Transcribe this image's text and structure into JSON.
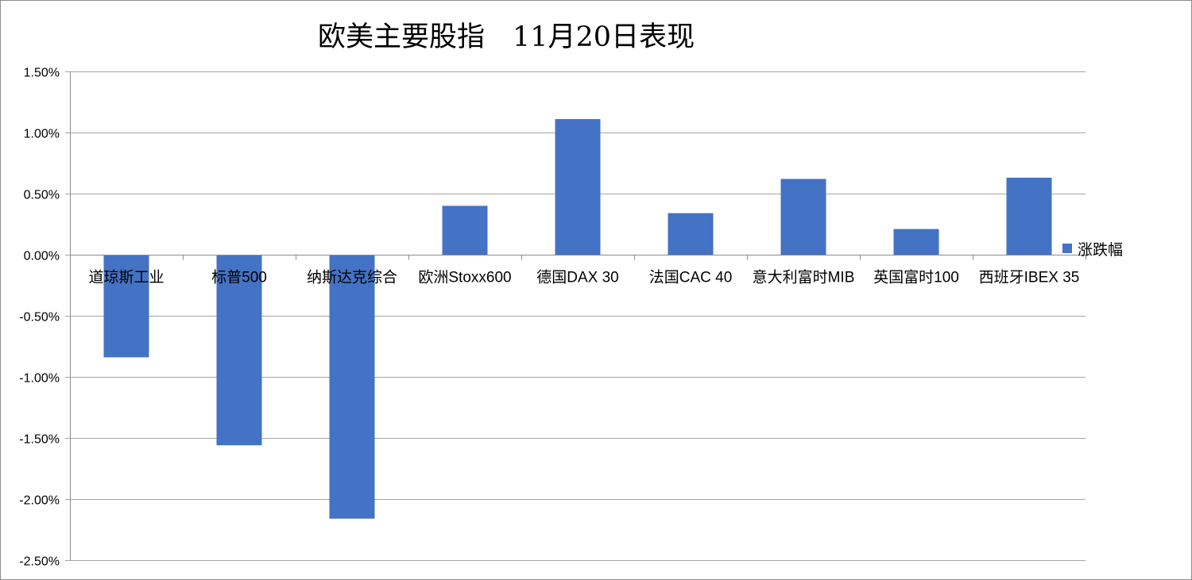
{
  "chart_data": {
    "type": "bar",
    "title": "欧美主要股指　11月20日表现",
    "categories": [
      "道琼斯工业",
      "标普500",
      "纳斯达克综合",
      "欧洲Stoxx600",
      "德国DAX 30",
      "法国CAC 40",
      "意大利富时MIB",
      "英国富时100",
      "西班牙IBEX 35"
    ],
    "series": [
      {
        "name": "涨跌幅",
        "values": [
          -0.84,
          -1.56,
          -2.16,
          0.4,
          1.11,
          0.34,
          0.62,
          0.21,
          0.63
        ],
        "color": "#4472C4"
      }
    ],
    "ylim": [
      -2.5,
      1.5
    ],
    "yticks": [
      {
        "value": 1.5,
        "label": "1.50%"
      },
      {
        "value": 1.0,
        "label": "1.00%"
      },
      {
        "value": 0.5,
        "label": "0.50%"
      },
      {
        "value": 0.0,
        "label": "0.00%"
      },
      {
        "value": -0.5,
        "label": "-0.50%"
      },
      {
        "value": -1.0,
        "label": "-1.00%"
      },
      {
        "value": -1.5,
        "label": "-1.50%"
      },
      {
        "value": -2.0,
        "label": "-2.00%"
      },
      {
        "value": -2.5,
        "label": "-2.50%"
      }
    ],
    "grid": true,
    "legend": {
      "position": "right"
    }
  }
}
